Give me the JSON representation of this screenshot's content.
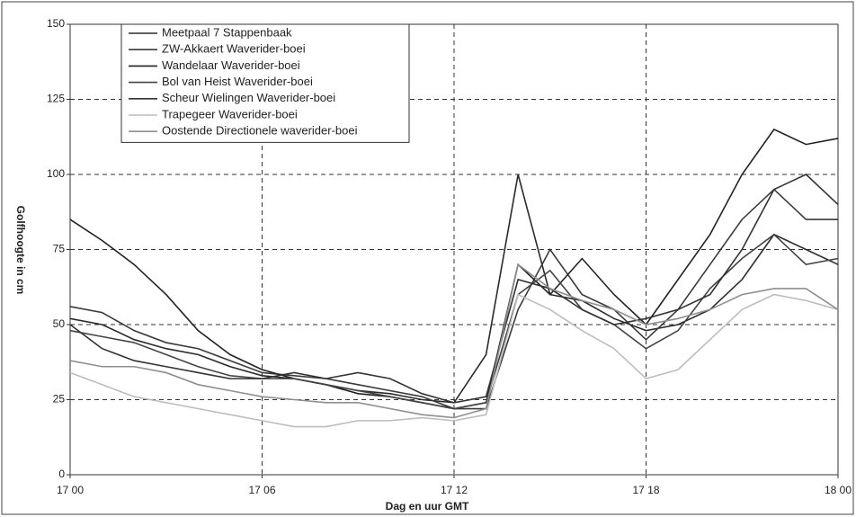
{
  "chart_data": {
    "type": "line",
    "y_label": "Golfhoogte in cm",
    "x_label": "Dag en uur GMT",
    "x": [
      0,
      1,
      2,
      3,
      4,
      5,
      6,
      7,
      8,
      9,
      10,
      11,
      12,
      13,
      14,
      15,
      16,
      17,
      18,
      19,
      20,
      21,
      22,
      23,
      24
    ],
    "xlim": [
      0,
      24
    ],
    "xticks": [
      {
        "value": 0,
        "label": "17 00"
      },
      {
        "value": 6,
        "label": "17 06"
      },
      {
        "value": 12,
        "label": "17 12"
      },
      {
        "value": 18,
        "label": "17 18"
      },
      {
        "value": 24,
        "label": "18 00"
      }
    ],
    "ylim": [
      0,
      150
    ],
    "yticks": [
      0,
      25,
      50,
      75,
      100,
      125,
      150
    ],
    "grid": true,
    "legend": "upper left",
    "series": [
      {
        "name": "Meetpaal 7 Stappenbaak",
        "color": "#2b2b2b",
        "values": [
          52,
          50,
          45,
          42,
          40,
          36,
          33,
          32,
          30,
          28,
          27,
          25,
          24,
          40,
          100,
          60,
          58,
          52,
          48,
          50,
          55,
          65,
          80,
          75,
          70
        ]
      },
      {
        "name": "ZW-Akkaert Waverider-boei",
        "color": "#3a3a3a",
        "values": [
          56,
          54,
          48,
          44,
          42,
          38,
          34,
          33,
          32,
          30,
          28,
          26,
          22,
          22,
          55,
          75,
          60,
          55,
          45,
          55,
          70,
          85,
          95,
          85,
          85
        ]
      },
      {
        "name": "Wandelaar Waverider-boei",
        "color": "#222222",
        "values": [
          85,
          78,
          70,
          60,
          48,
          40,
          35,
          32,
          30,
          27,
          26,
          24,
          22,
          24,
          70,
          60,
          72,
          60,
          50,
          65,
          80,
          100,
          115,
          110,
          112
        ]
      },
      {
        "name": "Bol van Heist Waverider-boei",
        "color": "#444444",
        "values": [
          48,
          46,
          44,
          40,
          36,
          33,
          32,
          32,
          30,
          28,
          26,
          24,
          22,
          24,
          60,
          68,
          55,
          50,
          42,
          48,
          62,
          72,
          80,
          70,
          72
        ]
      },
      {
        "name": "Scheur Wielingen Waverider-boei",
        "color": "#333333",
        "values": [
          50,
          42,
          38,
          36,
          34,
          32,
          32,
          34,
          32,
          34,
          32,
          27,
          24,
          26,
          65,
          62,
          55,
          50,
          52,
          55,
          60,
          75,
          95,
          100,
          90
        ]
      },
      {
        "name": "Trapegeer Waverider-boei",
        "color": "#bdbdbd",
        "values": [
          34,
          30,
          26,
          24,
          22,
          20,
          18,
          16,
          16,
          18,
          18,
          19,
          18,
          20,
          60,
          55,
          48,
          42,
          32,
          35,
          45,
          55,
          60,
          58,
          55
        ]
      },
      {
        "name": "Oostende Directionele waverider-boei",
        "color": "#8f8f8f",
        "values": [
          38,
          36,
          36,
          34,
          30,
          28,
          26,
          25,
          24,
          24,
          22,
          20,
          19,
          22,
          70,
          62,
          58,
          55,
          50,
          52,
          55,
          60,
          62,
          62,
          55
        ]
      }
    ]
  }
}
